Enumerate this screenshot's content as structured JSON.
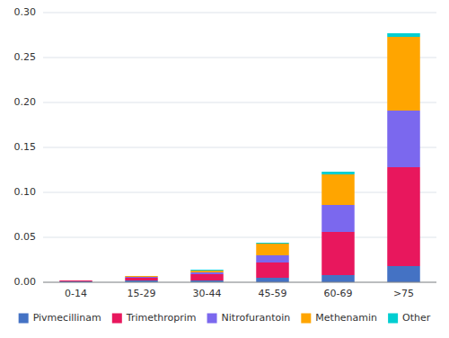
{
  "chart_data": {
    "type": "bar",
    "stacked": true,
    "grid": true,
    "legend": "bottom",
    "categories": [
      "0-14",
      "15-29",
      "30-44",
      "45-59",
      "60-69",
      ">75"
    ],
    "series": [
      {
        "name": "Pivmecillinam",
        "color": "#4472C4",
        "values": [
          0.001,
          0.002,
          0.002,
          0.005,
          0.008,
          0.018
        ]
      },
      {
        "name": "Trimethroprim",
        "color": "#E8175D",
        "values": [
          0.001,
          0.003,
          0.007,
          0.017,
          0.048,
          0.11
        ]
      },
      {
        "name": "Nitrofurantoin",
        "color": "#7B68EE",
        "values": [
          0.0,
          0.001,
          0.002,
          0.008,
          0.03,
          0.063
        ]
      },
      {
        "name": "Methenamin",
        "color": "#FFA500",
        "values": [
          0.0,
          0.001,
          0.002,
          0.013,
          0.034,
          0.082
        ]
      },
      {
        "name": "Other",
        "color": "#00CED1",
        "values": [
          0.0,
          0.0,
          0.001,
          0.001,
          0.003,
          0.004
        ]
      }
    ],
    "ylim": [
      0,
      0.3
    ],
    "yticks": [
      {
        "value": 0.0,
        "label": "0.00"
      },
      0.05,
      {
        "value": 0.1,
        "label": "0.10"
      },
      0.15,
      {
        "value": 0.2,
        "label": "0.20"
      },
      0.25,
      {
        "value": 0.3,
        "label": "0.30"
      }
    ]
  }
}
